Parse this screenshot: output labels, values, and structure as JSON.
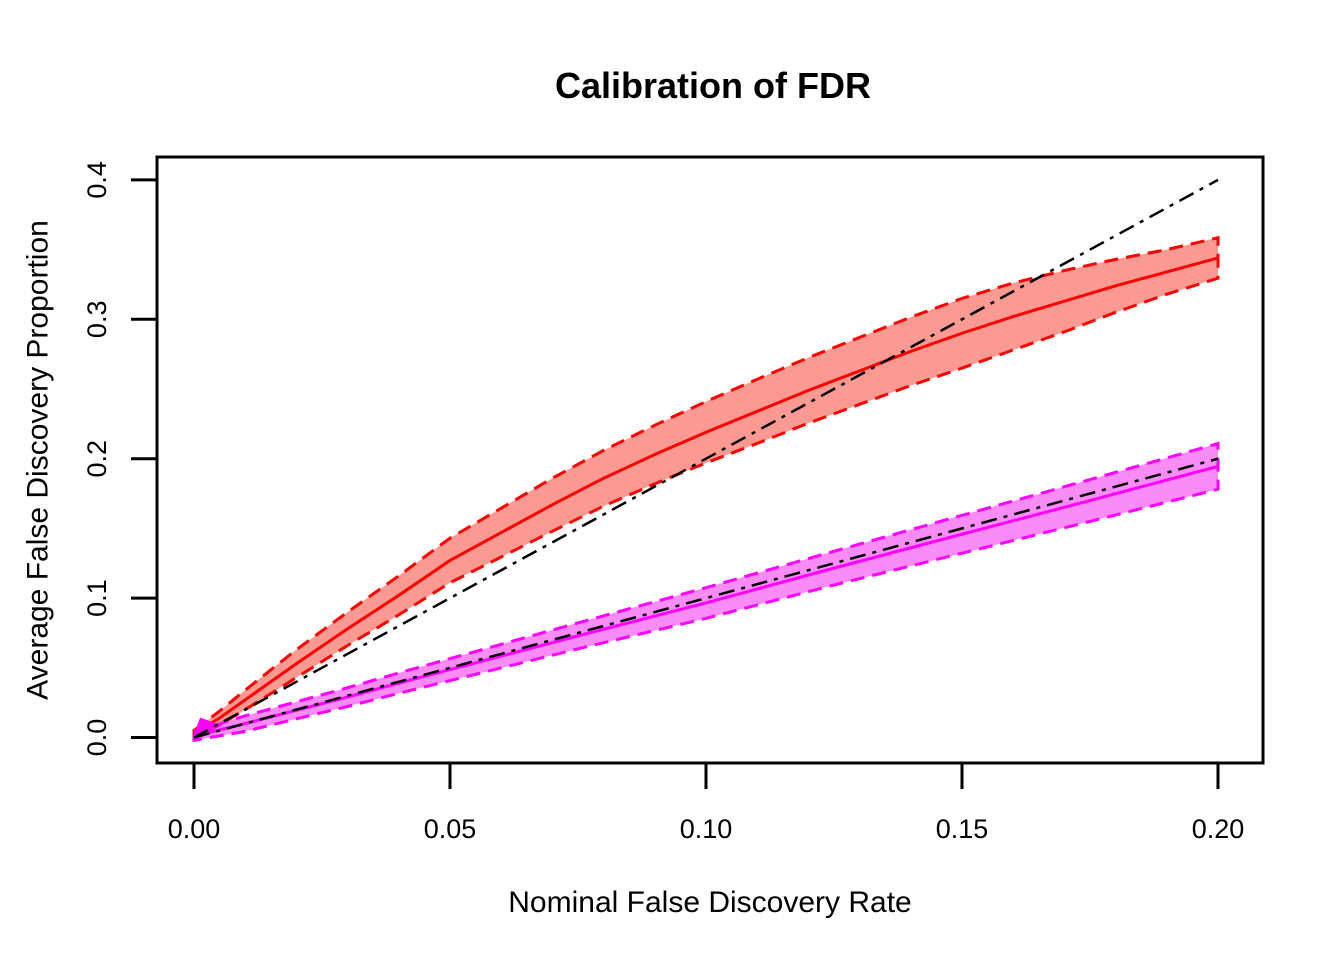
{
  "chart_data": {
    "type": "area",
    "title": "Calibration of FDR",
    "xlabel": "Nominal False Discovery Rate",
    "ylabel": "Average False Discovery Proportion",
    "xlim": [
      0,
      0.2
    ],
    "ylim": [
      0,
      0.4
    ],
    "grid": "off",
    "legend": "none",
    "x_ticks": [
      0,
      0.05,
      0.1,
      0.15,
      0.2
    ],
    "x_tick_labels": [
      "0.00",
      "0.05",
      "0.10",
      "0.15",
      "0.20"
    ],
    "y_ticks": [
      0,
      0.1,
      0.2,
      0.3,
      0.4
    ],
    "y_tick_labels": [
      "0.0",
      "0.1",
      "0.2",
      "0.3",
      "0.4"
    ],
    "colors": {
      "red_line": "#FF0000",
      "red_fill": "#FA9A93",
      "magenta_line": "#FF00FF",
      "magenta_fill": "#FA8CF8",
      "reference_line": "#000000",
      "frame": "#000000"
    },
    "series": [
      {
        "name": "red-ci-band",
        "kind": "band",
        "line_color": "#FF0000",
        "fill_color": "#FA9A93",
        "x": [
          0,
          0.005,
          0.01,
          0.02,
          0.03,
          0.04,
          0.05,
          0.06,
          0.07,
          0.08,
          0.09,
          0.1,
          0.11,
          0.12,
          0.13,
          0.14,
          0.15,
          0.16,
          0.17,
          0.18,
          0.19,
          0.2
        ],
        "center": [
          0.003,
          0.014,
          0.027,
          0.053,
          0.078,
          0.102,
          0.127,
          0.147,
          0.167,
          0.186,
          0.203,
          0.219,
          0.234,
          0.249,
          0.263,
          0.277,
          0.29,
          0.302,
          0.313,
          0.324,
          0.334,
          0.344
        ],
        "half_width": [
          0.002,
          0.005,
          0.007,
          0.01,
          0.012,
          0.014,
          0.016,
          0.0175,
          0.019,
          0.02,
          0.021,
          0.022,
          0.023,
          0.0235,
          0.024,
          0.0245,
          0.025,
          0.024,
          0.022,
          0.019,
          0.016,
          0.0145
        ]
      },
      {
        "name": "magenta-ci-band",
        "kind": "band",
        "line_color": "#FF00FF",
        "fill_color": "#FA8CF8",
        "x": [
          0,
          0.01,
          0.02,
          0.03,
          0.04,
          0.05,
          0.075,
          0.1,
          0.125,
          0.15,
          0.175,
          0.2
        ],
        "center": [
          0.001,
          0.01,
          0.0195,
          0.029,
          0.039,
          0.0487,
          0.0729,
          0.0965,
          0.1215,
          0.1458,
          0.17,
          0.1945
        ],
        "half_width": [
          0.003,
          0.0056,
          0.0061,
          0.0067,
          0.0073,
          0.0079,
          0.0093,
          0.011,
          0.0121,
          0.0136,
          0.015,
          0.0164
        ]
      },
      {
        "name": "reference-line-2x",
        "kind": "dashdot-line",
        "line_color": "#000000",
        "points": [
          [
            0,
            0
          ],
          [
            0.2,
            0.4
          ]
        ]
      },
      {
        "name": "reference-line-identity",
        "kind": "dashdot-line",
        "line_color": "#000000",
        "points": [
          [
            0,
            0
          ],
          [
            0.2,
            0.2
          ]
        ]
      }
    ],
    "origin_spike": {
      "name": "magenta-origin-spike",
      "fill_color": "#FF00FF",
      "points": [
        [
          0,
          0.0
        ],
        [
          0.0013,
          0.0133
        ],
        [
          0.005,
          0.0085
        ]
      ]
    }
  }
}
